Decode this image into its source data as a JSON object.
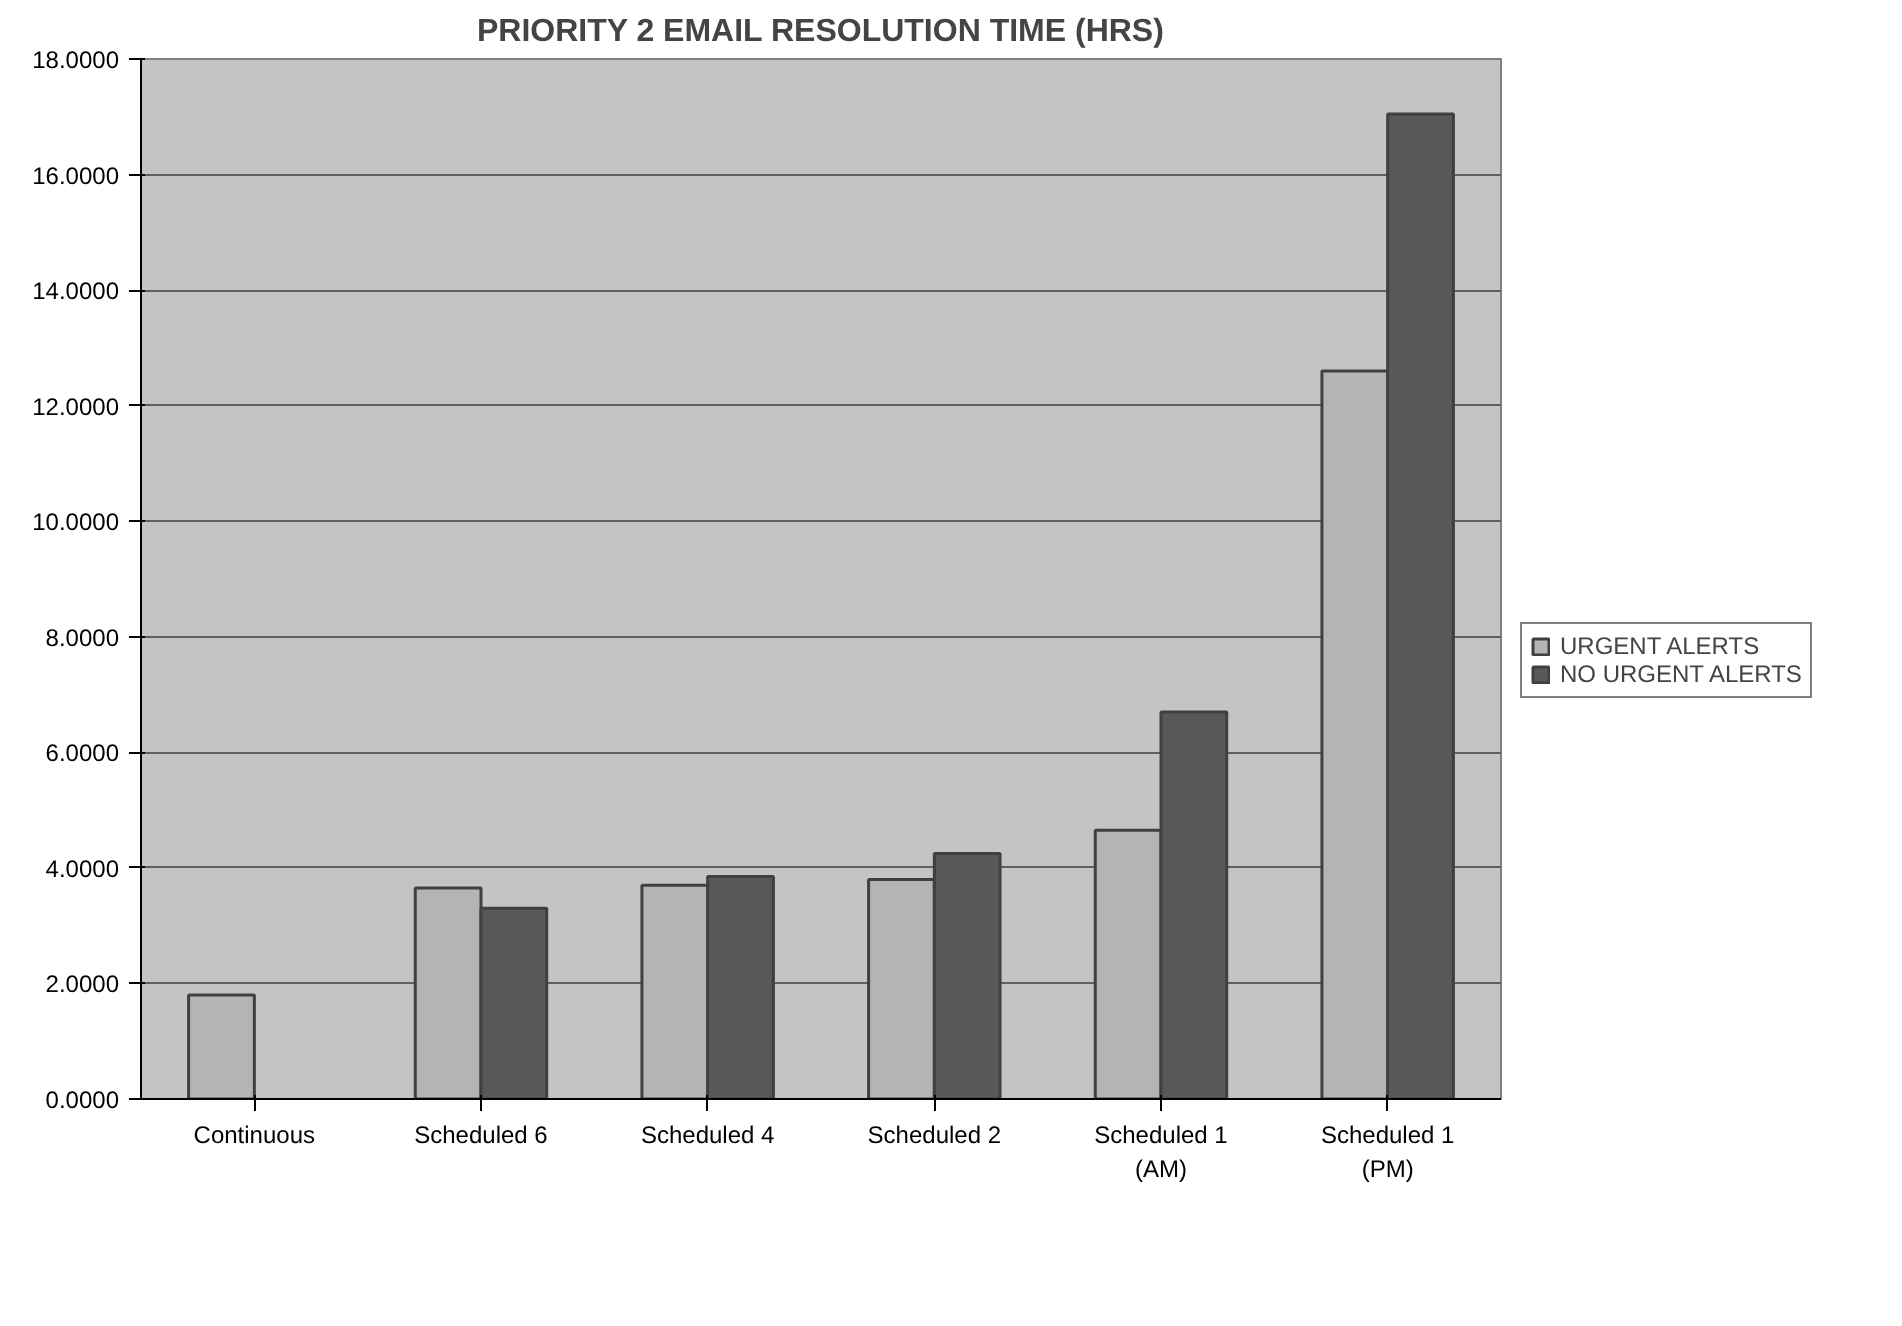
{
  "chart_data": {
    "type": "bar",
    "title": "PRIORITY 2 EMAIL RESOLUTION TIME (HRS)",
    "categories": [
      "Continuous",
      "Scheduled 6",
      "Scheduled 4",
      "Scheduled 2",
      "Scheduled 1\n(AM)",
      "Scheduled 1\n(PM)"
    ],
    "series": [
      {
        "name": "URGENT ALERTS",
        "color": "#b4b4b4",
        "values": [
          1.8,
          3.65,
          3.7,
          3.8,
          4.65,
          12.6
        ]
      },
      {
        "name": "NO URGENT ALERTS",
        "color": "#595959",
        "values": [
          null,
          3.3,
          3.85,
          4.25,
          6.7,
          17.05
        ]
      }
    ],
    "ylim": [
      0,
      18
    ],
    "yticks": [
      {
        "value": 0,
        "label": "0.0000"
      },
      {
        "value": 2,
        "label": "2.0000"
      },
      {
        "value": 4,
        "label": "4.0000"
      },
      {
        "value": 6,
        "label": "6.0000"
      },
      {
        "value": 8,
        "label": "8.0000"
      },
      {
        "value": 10,
        "label": "10.0000"
      },
      {
        "value": 12,
        "label": "12.0000"
      },
      {
        "value": 14,
        "label": "14.0000"
      },
      {
        "value": 16,
        "label": "16.0000"
      },
      {
        "value": 18,
        "label": "18.0000"
      }
    ],
    "grid": "y",
    "legend": "right"
  }
}
